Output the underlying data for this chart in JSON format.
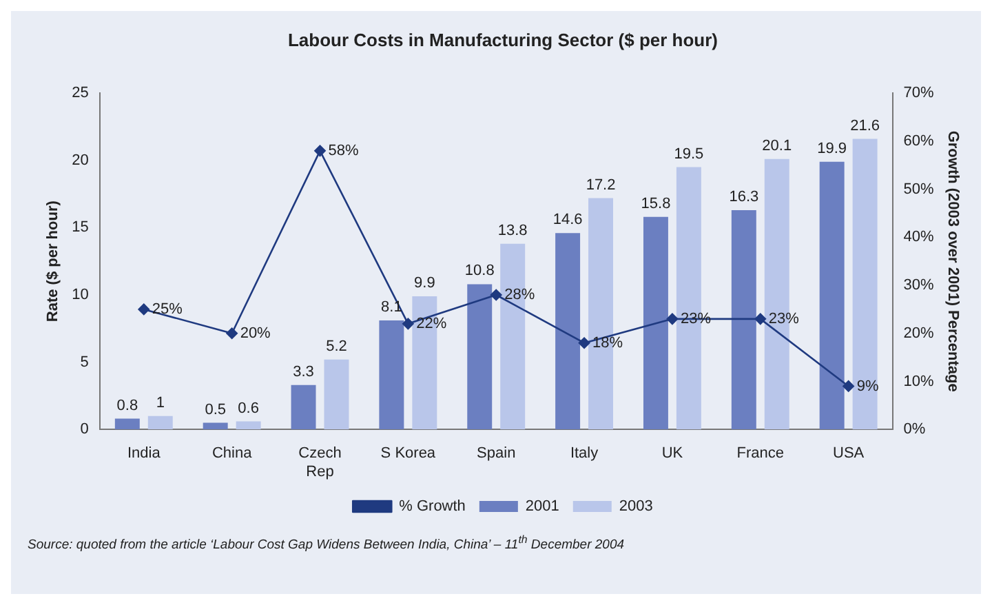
{
  "chart_data": {
    "type": "bar",
    "title": "Labour Costs in Manufacturing Sector ($ per hour)",
    "ylabel": "Rate ($ per hour)",
    "y2label": "Growth (2003 over 2001) Percentage",
    "categories": [
      "India",
      "China",
      "Czech Rep",
      "S Korea",
      "Spain",
      "Italy",
      "UK",
      "France",
      "USA"
    ],
    "series": [
      {
        "name": "2001",
        "color": "#6b7fc1",
        "values": [
          0.8,
          0.5,
          3.3,
          8.1,
          10.8,
          14.6,
          15.8,
          16.3,
          19.9
        ]
      },
      {
        "name": "2003",
        "color": "#b9c6ea",
        "values": [
          1,
          0.6,
          5.2,
          9.9,
          13.8,
          17.2,
          19.5,
          20.1,
          21.6
        ]
      },
      {
        "name": "% Growth",
        "type": "line",
        "axis": "y2",
        "color": "#1f3a80",
        "marker": "diamond",
        "values": [
          25,
          20,
          58,
          22,
          28,
          18,
          23,
          23,
          9
        ],
        "value_labels": [
          "25%",
          "20%",
          "58%",
          "22%",
          "28%",
          "18%",
          "23%",
          "23%",
          "9%"
        ]
      }
    ],
    "ylim": [
      0,
      25
    ],
    "yticks": [
      0,
      5,
      10,
      15,
      20,
      25
    ],
    "y2lim": [
      0,
      70
    ],
    "y2ticks": [
      {
        "value": 0,
        "label": "0%"
      },
      {
        "value": 10,
        "label": "10%"
      },
      {
        "value": 20,
        "label": "20%"
      },
      {
        "value": 30,
        "label": "30%"
      },
      {
        "value": 40,
        "label": "40%"
      },
      {
        "value": 50,
        "label": "50%"
      },
      {
        "value": 60,
        "label": "60%"
      },
      {
        "value": 70,
        "label": "70%"
      }
    ],
    "data_labels": true,
    "grid": false,
    "legend": "bottom",
    "annotations": [
      "Source: quoted from the article ‘Labour Cost Gap Widens Between India, China’ – 11$^{th}$ December 2004"
    ]
  }
}
